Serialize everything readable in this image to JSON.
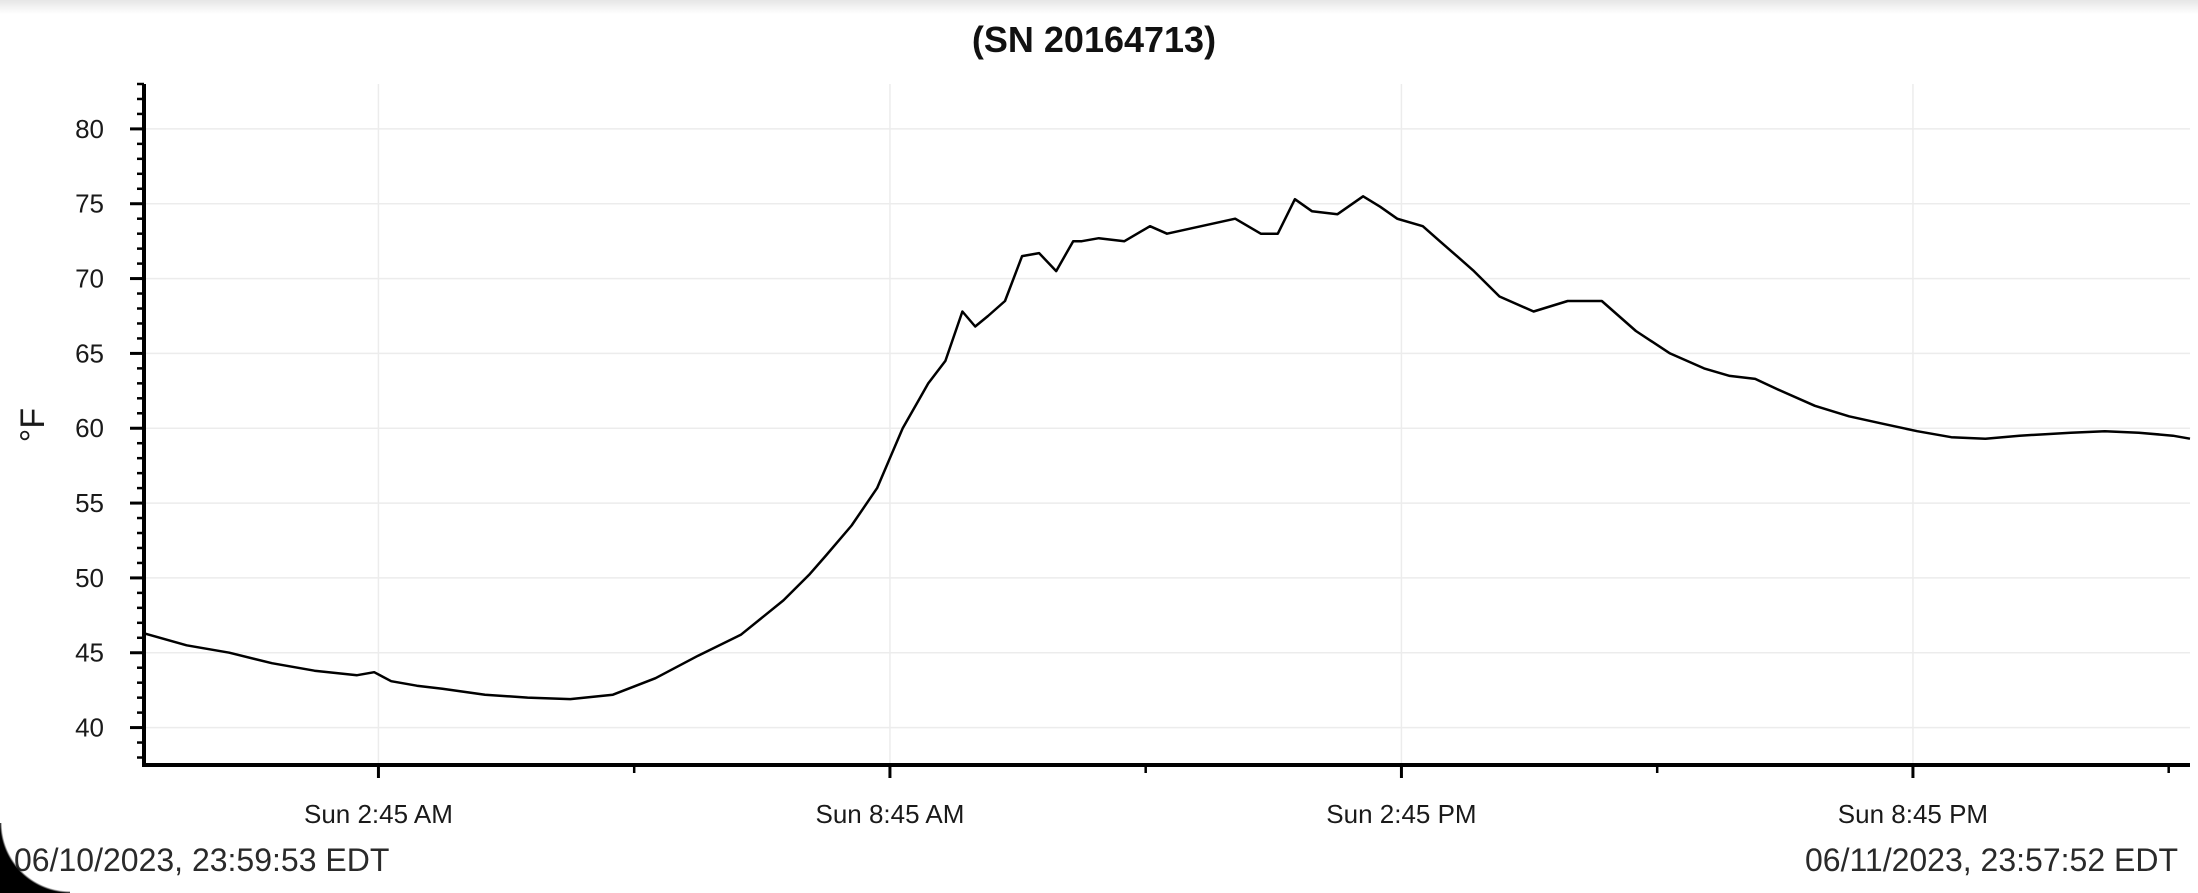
{
  "chart_data": {
    "type": "line",
    "title": "(SN 20164713)",
    "ylabel": "°F",
    "xlabel": "",
    "ylim": [
      37.5,
      83
    ],
    "yticks": [
      40,
      45,
      50,
      55,
      60,
      65,
      70,
      75,
      80
    ],
    "x_tick_labels": [
      "Sun 2:45 AM",
      "Sun 8:45 AM",
      "Sun 2:45 PM",
      "Sun 8:45 PM"
    ],
    "x_tick_hours": [
      2.75,
      8.75,
      14.75,
      20.75
    ],
    "x_unit": "hours after 06/10/2023 23:59:53 EDT",
    "xlim": [
      0,
      24
    ],
    "grid": true,
    "series": [
      {
        "name": "",
        "color": "#000000",
        "x": [
          0,
          0.5,
          1,
          1.5,
          2,
          2.5,
          2.7,
          2.9,
          3.2,
          3.5,
          4,
          4.5,
          5,
          5.5,
          6,
          6.5,
          7,
          7.5,
          7.8,
          8,
          8.3,
          8.6,
          8.9,
          9.1,
          9.2,
          9.4,
          9.6,
          9.75,
          9.9,
          10.1,
          10.3,
          10.5,
          10.7,
          10.9,
          11,
          11.2,
          11.5,
          11.8,
          12,
          12.4,
          12.8,
          13.1,
          13.3,
          13.5,
          13.7,
          14,
          14.3,
          14.5,
          14.7,
          15,
          15.2,
          15.4,
          15.6,
          15.9,
          16.3,
          16.7,
          17.1,
          17.5,
          17.9,
          18.3,
          18.6,
          18.9,
          19.2,
          19.6,
          20,
          20.4,
          20.8,
          21.2,
          21.6,
          22,
          22.3,
          22.6,
          23,
          23.4,
          23.8,
          24
        ],
        "y": [
          46.3,
          45.5,
          45,
          44.3,
          43.8,
          43.5,
          43.7,
          43.1,
          42.8,
          42.6,
          42.2,
          42,
          41.9,
          42.2,
          43.3,
          44.8,
          46.2,
          48.5,
          50.2,
          51.5,
          53.5,
          56,
          60,
          62,
          63,
          64.5,
          67.8,
          66.8,
          67.5,
          68.5,
          71.5,
          71.7,
          70.5,
          72.5,
          72.5,
          72.7,
          72.5,
          73.5,
          73,
          73.5,
          74,
          73,
          73,
          75.3,
          74.5,
          74.3,
          75.5,
          74.8,
          74,
          73.5,
          72.5,
          71.5,
          70.5,
          68.8,
          67.8,
          68.5,
          68.5,
          66.5,
          65,
          64,
          63.5,
          63.3,
          62.5,
          61.5,
          60.8,
          60.3,
          59.8,
          59.4,
          59.3,
          59.5,
          59.6,
          59.7,
          59.8,
          59.7,
          59.5,
          59.3
        ]
      }
    ]
  },
  "footer": {
    "range_start": "06/10/2023, 23:59:53 EDT",
    "range_end": "06/11/2023, 23:57:52 EDT"
  }
}
